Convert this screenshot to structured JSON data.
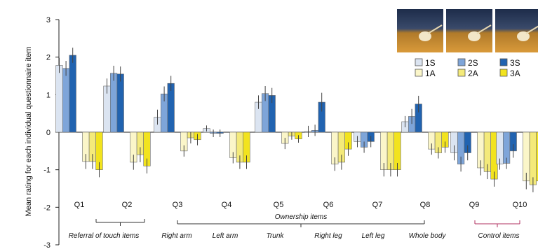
{
  "chart_data": {
    "type": "bar",
    "ylabel": "Mean rating  for each individual questionnaire item",
    "ylim": [
      -3,
      3
    ],
    "yticks": [
      "3",
      "2",
      "1",
      "0",
      "-1",
      "-2",
      "-3"
    ],
    "categories": [
      "Q1",
      "Q2",
      "Q3",
      "Q4",
      "Q5",
      "Q6",
      "Q7",
      "Q8",
      "Q9",
      "Q10"
    ],
    "series": [
      {
        "name": "1S",
        "color": "#dbe4f1",
        "values": [
          1.78,
          1.23,
          0.4,
          0.1,
          0.8,
          0.02,
          -0.25,
          0.28,
          -0.55,
          -0.85
        ],
        "errors": [
          0.2,
          0.2,
          0.2,
          0.08,
          0.18,
          0.15,
          0.15,
          0.15,
          0.2,
          0.15
        ]
      },
      {
        "name": "2S",
        "color": "#7ea5d9",
        "values": [
          1.7,
          1.57,
          1.02,
          -0.03,
          1.03,
          0.05,
          -0.4,
          0.42,
          -0.85,
          -0.83
        ],
        "errors": [
          0.2,
          0.2,
          0.2,
          0.1,
          0.2,
          0.15,
          0.15,
          0.2,
          0.2,
          0.15
        ]
      },
      {
        "name": "3S",
        "color": "#2163b0",
        "values": [
          2.05,
          1.55,
          1.3,
          -0.03,
          0.98,
          0.8,
          -0.25,
          0.75,
          -0.55,
          -0.5
        ],
        "errors": [
          0.2,
          0.2,
          0.2,
          0.1,
          0.2,
          0.25,
          0.15,
          0.22,
          0.2,
          0.18
        ]
      },
      {
        "name": "1A",
        "color": "#fbf6c9",
        "values": [
          -0.78,
          -0.8,
          -0.5,
          -0.68,
          -0.3,
          -0.85,
          -1.0,
          -0.45,
          -0.95,
          -1.3
        ],
        "errors": [
          0.2,
          0.2,
          0.15,
          0.15,
          0.15,
          0.18,
          0.18,
          0.15,
          0.2,
          0.22
        ]
      },
      {
        "name": "2A",
        "color": "#f4ea7a",
        "values": [
          -0.78,
          -0.6,
          -0.15,
          -0.8,
          -0.1,
          -0.8,
          -1.0,
          -0.55,
          -1.05,
          -1.4
        ],
        "errors": [
          0.2,
          0.2,
          0.15,
          0.18,
          0.1,
          0.2,
          0.18,
          0.15,
          0.2,
          0.2
        ]
      },
      {
        "name": "3A",
        "color": "#f2e31e",
        "values": [
          -1.0,
          -0.9,
          -0.2,
          -0.8,
          -0.18,
          -0.45,
          -1.0,
          -0.4,
          -1.25,
          -1.3
        ],
        "errors": [
          0.2,
          0.2,
          0.15,
          0.18,
          0.1,
          0.18,
          0.18,
          0.15,
          0.2,
          0.2
        ]
      }
    ],
    "item_labels": [
      "Referral of touch items",
      "Right arm",
      "Left arm",
      "Trunk",
      "Right leg",
      "Left leg",
      "Whole body",
      "Control items"
    ],
    "group_label": "Ownership items",
    "legend_position": "top-right",
    "grid": false
  }
}
